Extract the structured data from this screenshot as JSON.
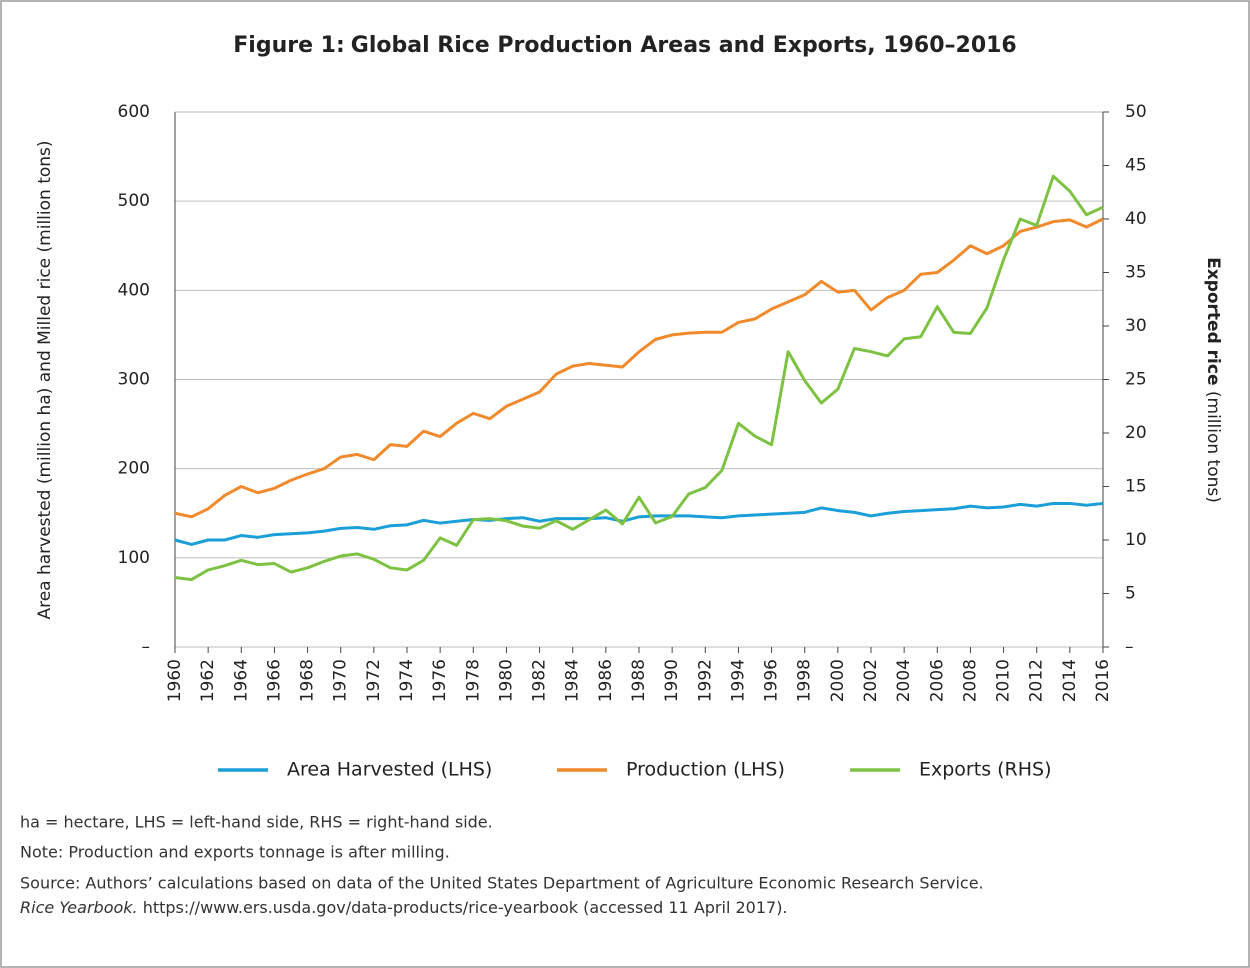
{
  "chart_data": {
    "type": "line",
    "title_label": "Figure 1:",
    "title": "Global Rice Production Areas and Exports, 1960–2016",
    "ylabel": [
      "Area harvested",
      " (million ha) and ",
      "Milled rice",
      " (million tons)"
    ],
    "y2label": [
      "Exported rice",
      " (million tons)"
    ],
    "x": [
      1960,
      1961,
      1962,
      1963,
      1964,
      1965,
      1966,
      1967,
      1968,
      1969,
      1970,
      1971,
      1972,
      1973,
      1974,
      1975,
      1976,
      1977,
      1978,
      1979,
      1980,
      1981,
      1982,
      1983,
      1984,
      1985,
      1986,
      1987,
      1988,
      1989,
      1990,
      1991,
      1992,
      1993,
      1994,
      1995,
      1996,
      1997,
      1998,
      1999,
      2000,
      2001,
      2002,
      2003,
      2004,
      2005,
      2006,
      2007,
      2008,
      2009,
      2010,
      2011,
      2012,
      2013,
      2014,
      2015,
      2016
    ],
    "xlim": [
      1960,
      2016
    ],
    "xticks": [
      1960,
      1962,
      1964,
      1966,
      1968,
      1970,
      1972,
      1974,
      1976,
      1978,
      1980,
      1982,
      1984,
      1986,
      1988,
      1990,
      1992,
      1994,
      1996,
      1998,
      2000,
      2002,
      2004,
      2006,
      2008,
      2010,
      2012,
      2014,
      2016
    ],
    "ylim": [
      0,
      600
    ],
    "yticks": [
      {
        "value": 0,
        "label": "–"
      },
      100,
      200,
      300,
      400,
      500,
      600
    ],
    "y2lim": [
      0,
      50
    ],
    "y2ticks": [
      {
        "value": 0,
        "label": "–"
      },
      5,
      10,
      15,
      20,
      25,
      30,
      35,
      40,
      45,
      50
    ],
    "grid": true,
    "legend": "bottom",
    "series": [
      {
        "name": "Area Harvested (LHS)",
        "color": "#1a9fd8",
        "values": [
          120,
          115,
          120,
          120,
          125,
          123,
          126,
          127,
          128,
          130,
          133,
          134,
          132,
          136,
          137,
          142,
          139,
          141,
          143,
          142,
          144,
          145,
          141,
          144,
          144,
          144,
          145,
          141,
          146,
          147,
          147,
          147,
          146,
          145,
          147,
          148,
          149,
          150,
          151,
          156,
          153,
          151,
          147,
          150,
          152,
          153,
          154,
          155,
          158,
          156,
          157,
          160,
          158,
          161,
          161,
          159,
          161
        ]
      },
      {
        "name": "Production (LHS)",
        "color": "#f08a2c",
        "values": [
          150,
          146,
          155,
          170,
          180,
          173,
          178,
          187,
          194,
          200,
          213,
          216,
          210,
          227,
          225,
          242,
          236,
          251,
          262,
          256,
          270,
          278,
          286,
          306,
          315,
          318,
          316,
          314,
          331,
          345,
          350,
          352,
          353,
          353,
          364,
          368,
          379,
          387,
          395,
          410,
          398,
          400,
          378,
          392,
          400,
          418,
          420,
          434,
          450,
          441,
          450,
          466,
          471,
          477,
          479,
          471,
          480
        ]
      },
      {
        "name": "Exports (RHS)",
        "color": "#7dc242",
        "axis": "y2",
        "values": [
          6.5,
          6.3,
          7.2,
          7.6,
          8.1,
          7.7,
          7.8,
          7.0,
          7.4,
          8.0,
          8.5,
          8.7,
          8.2,
          7.4,
          7.2,
          8.1,
          10.2,
          9.5,
          11.9,
          12.0,
          11.8,
          11.3,
          11.1,
          11.8,
          11.0,
          11.9,
          12.8,
          11.5,
          14.0,
          11.6,
          12.2,
          14.3,
          14.9,
          16.5,
          20.9,
          19.7,
          18.9,
          27.6,
          24.9,
          22.8,
          24.1,
          27.9,
          27.6,
          27.2,
          28.8,
          29.0,
          31.8,
          29.4,
          29.3,
          31.7,
          36.2,
          40.0,
          39.4,
          44.0,
          42.6,
          40.4,
          41.1
        ]
      }
    ],
    "notes": [
      "ha = hectare, LHS = left-hand side, RHS = right-hand side.",
      "Note: Production and exports tonnage is after milling.",
      "Source: Authors’ calculations based on data of the United States Department of Agriculture Economic Research Service."
    ],
    "source_line": [
      "Rice Yearbook.",
      " https://www.ers.usda.gov/data-products/rice-yearbook (accessed 11 April 2017)."
    ]
  }
}
